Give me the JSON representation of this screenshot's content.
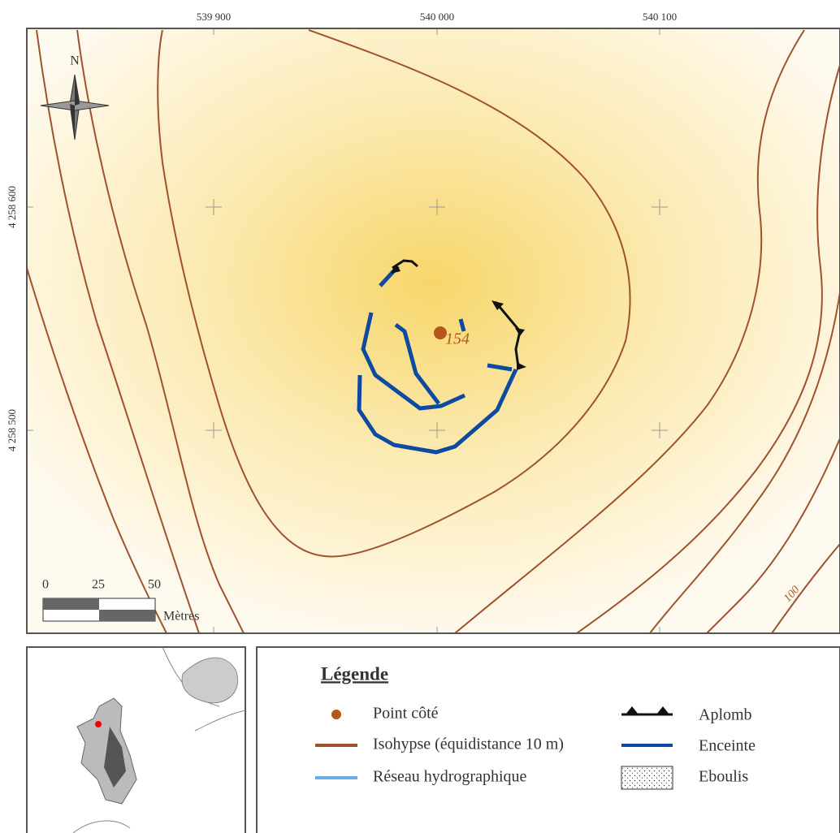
{
  "map": {
    "x_labels": [
      "539 900",
      "540 000",
      "540 100"
    ],
    "y_labels": [
      "4 258 600",
      "4 258 500"
    ],
    "north": "N",
    "spot_height": "154",
    "contour_label": "100",
    "scale": {
      "labels": [
        "0",
        "25",
        "50"
      ],
      "unit": "Mètres"
    }
  },
  "legend": {
    "title": "Légende",
    "items": [
      "Point côté",
      "Isohypse (équidistance 10 m)",
      "Réseau hydrographique",
      "Aplomb",
      "Enceinte",
      "Eboulis"
    ]
  }
}
